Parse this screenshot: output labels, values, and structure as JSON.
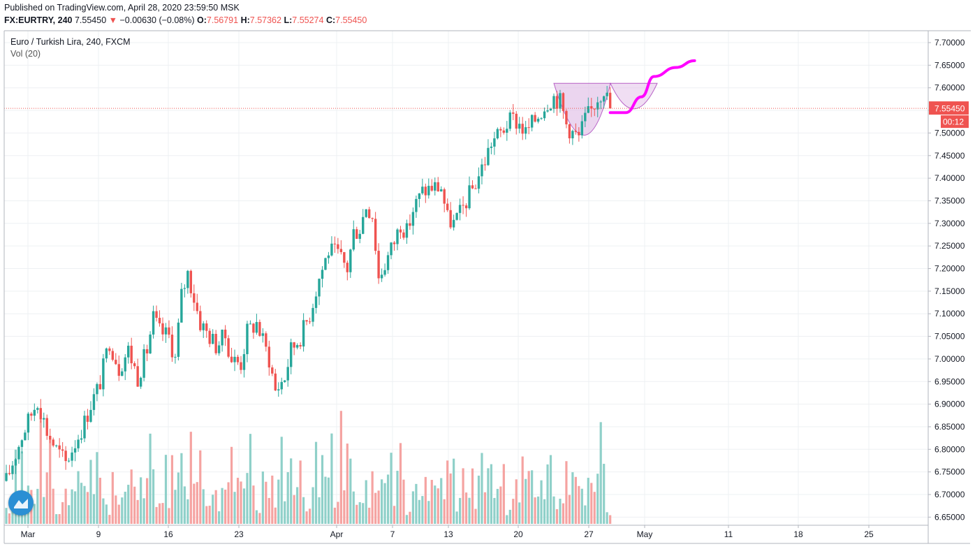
{
  "header": {
    "published": "Published on TradingView.com, April 28, 2020 23:59:50 MSK",
    "symbol": "FX:EURTRY, 240",
    "price": "7.55450",
    "change": "−0.00630 (−0.08%)",
    "open_label": "O:",
    "open": "7.56791",
    "high_label": "H:",
    "high": "7.57362",
    "low_label": "L:",
    "low": "7.55274",
    "close_label": "C:",
    "close": "7.55450"
  },
  "legend": {
    "title": "Euro / Turkish Lira, 240, FXCM",
    "volume": "Vol (20)"
  },
  "price_axis": {
    "ticks": [
      "7.70000",
      "7.65000",
      "7.60000",
      "7.55000",
      "7.50000",
      "7.45000",
      "7.40000",
      "7.35000",
      "7.30000",
      "7.25000",
      "7.20000",
      "7.15000",
      "7.10000",
      "7.05000",
      "7.00000",
      "6.95000",
      "6.90000",
      "6.85000",
      "6.80000",
      "6.75000",
      "6.70000",
      "6.65000"
    ],
    "current_price_label": "7.55450",
    "countdown_label": "00:12"
  },
  "time_axis": {
    "labels": [
      "Mar",
      "9",
      "16",
      "23",
      "Apr",
      "7",
      "13",
      "20",
      "27",
      "May",
      "11",
      "18",
      "25"
    ]
  },
  "colors": {
    "up": "#26a69a",
    "down": "#ef5350",
    "vol_up": "#8fd0c9",
    "vol_down": "#f5a3a1",
    "pattern_fill": "#e1bee7",
    "pattern_stroke": "#9c27b0",
    "forecast": "#ff00ff",
    "price_line": "#ef5350"
  },
  "chart_data": {
    "type": "candlestick",
    "symbol": "FX:EURTRY",
    "ylim": [
      6.64,
      7.72
    ],
    "y_ticks": [
      7.7,
      7.65,
      7.6,
      7.55,
      7.5,
      7.45,
      7.4,
      7.35,
      7.3,
      7.25,
      7.2,
      7.15,
      7.1,
      7.05,
      7.0,
      6.95,
      6.9,
      6.85,
      6.8,
      6.75,
      6.7,
      6.65
    ],
    "path": [
      [
        0,
        6.73
      ],
      [
        5,
        6.83
      ],
      [
        10,
        6.91
      ],
      [
        13,
        6.84
      ],
      [
        16,
        6.8
      ],
      [
        19,
        6.77
      ],
      [
        21,
        6.8
      ],
      [
        25,
        6.86
      ],
      [
        27,
        6.9
      ],
      [
        29,
        6.93
      ],
      [
        30,
        6.95
      ],
      [
        33,
        7.04
      ],
      [
        36,
        6.98
      ],
      [
        39,
        7.02
      ],
      [
        42,
        6.96
      ],
      [
        45,
        7.02
      ],
      [
        47,
        7.09
      ],
      [
        49,
        7.06
      ],
      [
        52,
        7.05
      ],
      [
        54,
        7.0
      ],
      [
        56,
        7.14
      ],
      [
        58,
        7.19
      ],
      [
        62,
        7.08
      ],
      [
        65,
        7.05
      ],
      [
        67,
        7.03
      ],
      [
        70,
        7.05
      ],
      [
        72,
        7.0
      ],
      [
        75,
        6.99
      ],
      [
        77,
        7.06
      ],
      [
        80,
        7.08
      ],
      [
        82,
        7.04
      ],
      [
        84,
        7.0
      ],
      [
        86,
        6.93
      ],
      [
        89,
        6.96
      ],
      [
        91,
        7.02
      ],
      [
        94,
        7.05
      ],
      [
        97,
        7.1
      ],
      [
        100,
        7.18
      ],
      [
        103,
        7.24
      ],
      [
        106,
        7.23
      ],
      [
        109,
        7.2
      ],
      [
        111,
        7.28
      ],
      [
        113,
        7.29
      ],
      [
        115,
        7.34
      ],
      [
        117,
        7.32
      ],
      [
        119,
        7.18
      ],
      [
        121,
        7.21
      ],
      [
        124,
        7.26
      ],
      [
        126,
        7.3
      ],
      [
        128,
        7.28
      ],
      [
        130,
        7.33
      ],
      [
        133,
        7.37
      ],
      [
        136,
        7.38
      ],
      [
        139,
        7.38
      ],
      [
        141,
        7.31
      ],
      [
        143,
        7.3
      ],
      [
        145,
        7.32
      ],
      [
        147,
        7.35
      ],
      [
        150,
        7.39
      ],
      [
        153,
        7.44
      ],
      [
        155,
        7.48
      ],
      [
        158,
        7.5
      ],
      [
        160,
        7.52
      ],
      [
        162,
        7.53
      ],
      [
        164,
        7.52
      ],
      [
        166,
        7.5
      ],
      [
        168,
        7.52
      ],
      [
        171,
        7.55
      ],
      [
        173,
        7.57
      ],
      [
        175,
        7.58
      ],
      [
        177,
        7.57
      ],
      [
        179,
        7.52
      ],
      [
        181,
        7.5
      ],
      [
        183,
        7.49
      ],
      [
        185,
        7.53
      ],
      [
        187,
        7.55
      ],
      [
        189,
        7.58
      ],
      [
        191,
        7.6
      ],
      [
        193,
        7.555
      ]
    ],
    "volume_levels": [
      0.15,
      0.4,
      0.8,
      0.55,
      0.3,
      0.65,
      0.45,
      0.2,
      0.7,
      0.5,
      0.35,
      0.6,
      0.25,
      0.85,
      0.45,
      0.3
    ],
    "cup_and_handle": {
      "rim_level": 7.61,
      "cup_low": 7.465,
      "handle_low": 7.54
    },
    "forecast_path": [
      [
        193,
        7.545
      ],
      [
        198,
        7.545
      ],
      [
        203,
        7.58
      ],
      [
        207,
        7.625
      ],
      [
        214,
        7.645
      ],
      [
        220,
        7.66
      ]
    ],
    "last_price": 7.5545,
    "time_labels": [
      "Mar",
      "9",
      "16",
      "23",
      "Apr",
      "7",
      "13",
      "20",
      "27",
      "May",
      "11",
      "18",
      "25"
    ]
  }
}
